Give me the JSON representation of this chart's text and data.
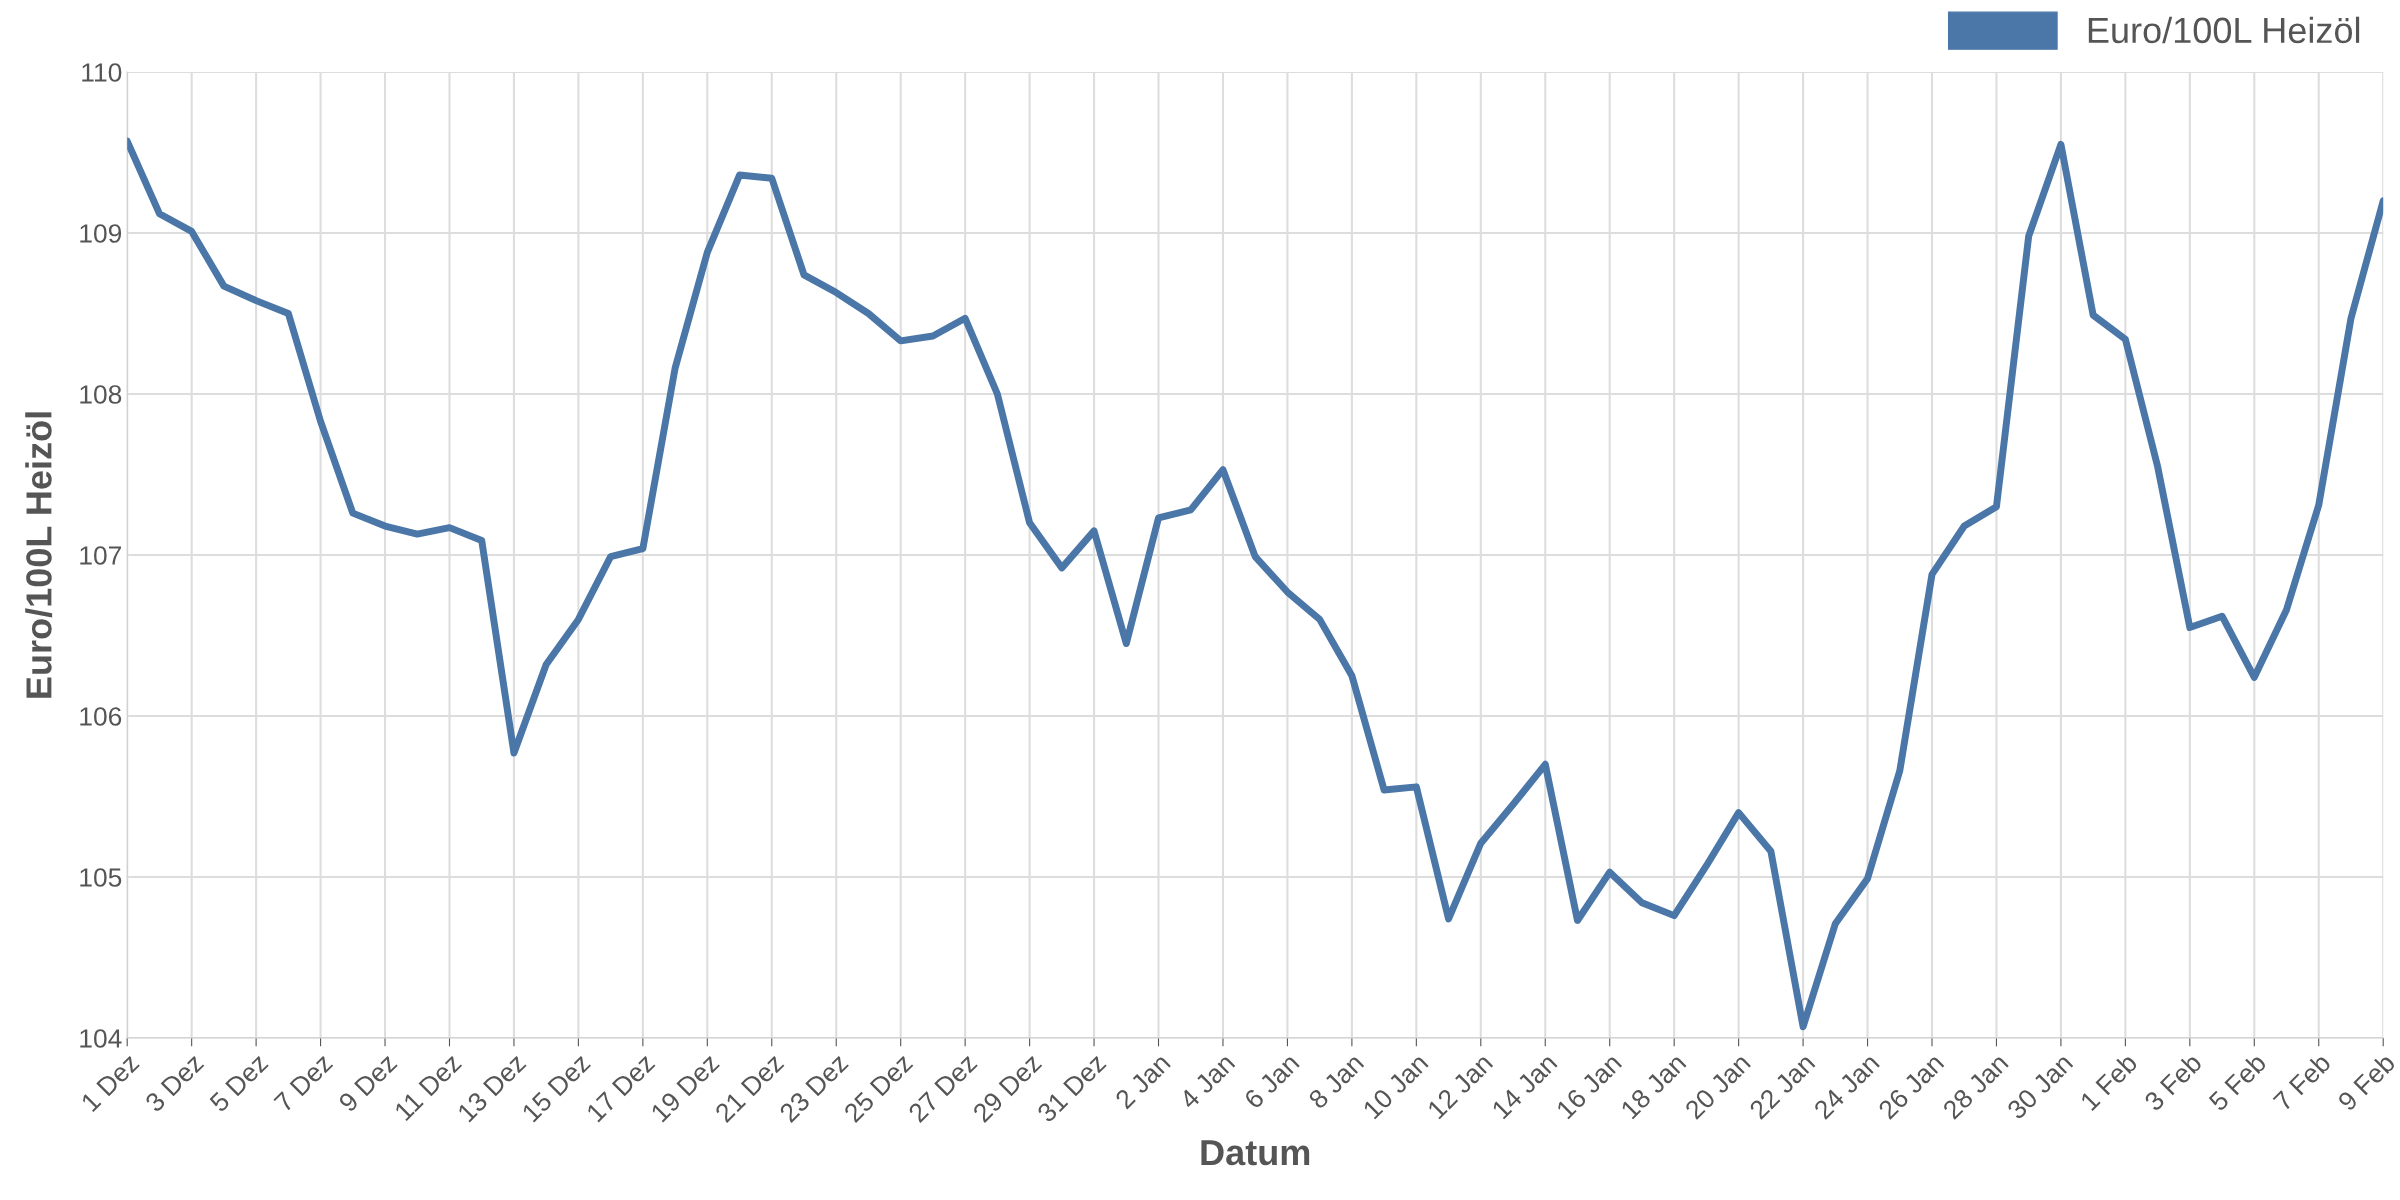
{
  "chart_data": {
    "type": "line",
    "xlabel": "Datum",
    "ylabel": "Euro/100L Heizöl",
    "categories": [
      "1 Dez",
      null,
      "3 Dez",
      null,
      "5 Dez",
      null,
      "7 Dez",
      null,
      "9 Dez",
      null,
      "11 Dez",
      null,
      "13 Dez",
      null,
      "15 Dez",
      null,
      "17 Dez",
      null,
      "19 Dez",
      null,
      "21 Dez",
      null,
      "23 Dez",
      null,
      "25 Dez",
      null,
      "27 Dez",
      null,
      "29 Dez",
      null,
      "31 Dez",
      null,
      "2 Jan",
      null,
      "4 Jan",
      null,
      "6 Jan",
      null,
      "8 Jan",
      null,
      "10 Jan",
      null,
      "12 Jan",
      null,
      "14 Jan",
      null,
      "16 Jan",
      null,
      "18 Jan",
      null,
      "20 Jan",
      null,
      "22 Jan",
      null,
      "24 Jan",
      null,
      "26 Jan",
      null,
      "28 Jan",
      null,
      "30 Jan",
      null,
      "1 Feb",
      null,
      "3 Feb",
      null,
      "5 Feb",
      null,
      "7 Feb",
      null,
      "9 Feb"
    ],
    "series": [
      {
        "name": "Euro/100L Heizöl",
        "color": "#4a76a8",
        "values": [
          109.57,
          109.12,
          109.01,
          108.67,
          108.58,
          108.5,
          107.83,
          107.26,
          107.18,
          107.13,
          107.17,
          107.09,
          105.77,
          106.32,
          106.6,
          106.99,
          107.04,
          108.16,
          108.88,
          109.36,
          109.34,
          108.74,
          108.63,
          108.5,
          108.33,
          108.36,
          108.47,
          108.0,
          107.2,
          106.92,
          107.15,
          106.45,
          107.23,
          107.28,
          107.53,
          106.99,
          106.77,
          106.6,
          106.25,
          105.54,
          105.56,
          104.74,
          105.21,
          105.45,
          105.7,
          104.73,
          105.03,
          104.84,
          104.76,
          105.07,
          105.4,
          105.16,
          104.07,
          104.71,
          104.99,
          105.66,
          106.88,
          107.18,
          107.3,
          108.98,
          109.55,
          108.49,
          108.34,
          107.55,
          106.55,
          106.62,
          106.24,
          106.66,
          107.31,
          108.47,
          109.2
        ]
      }
    ],
    "ylim": [
      104,
      110
    ],
    "yticks": [
      104,
      105,
      106,
      107,
      108,
      109,
      110
    ],
    "grid": true,
    "legend": "top right",
    "marker": "none",
    "line_style": "solid"
  }
}
